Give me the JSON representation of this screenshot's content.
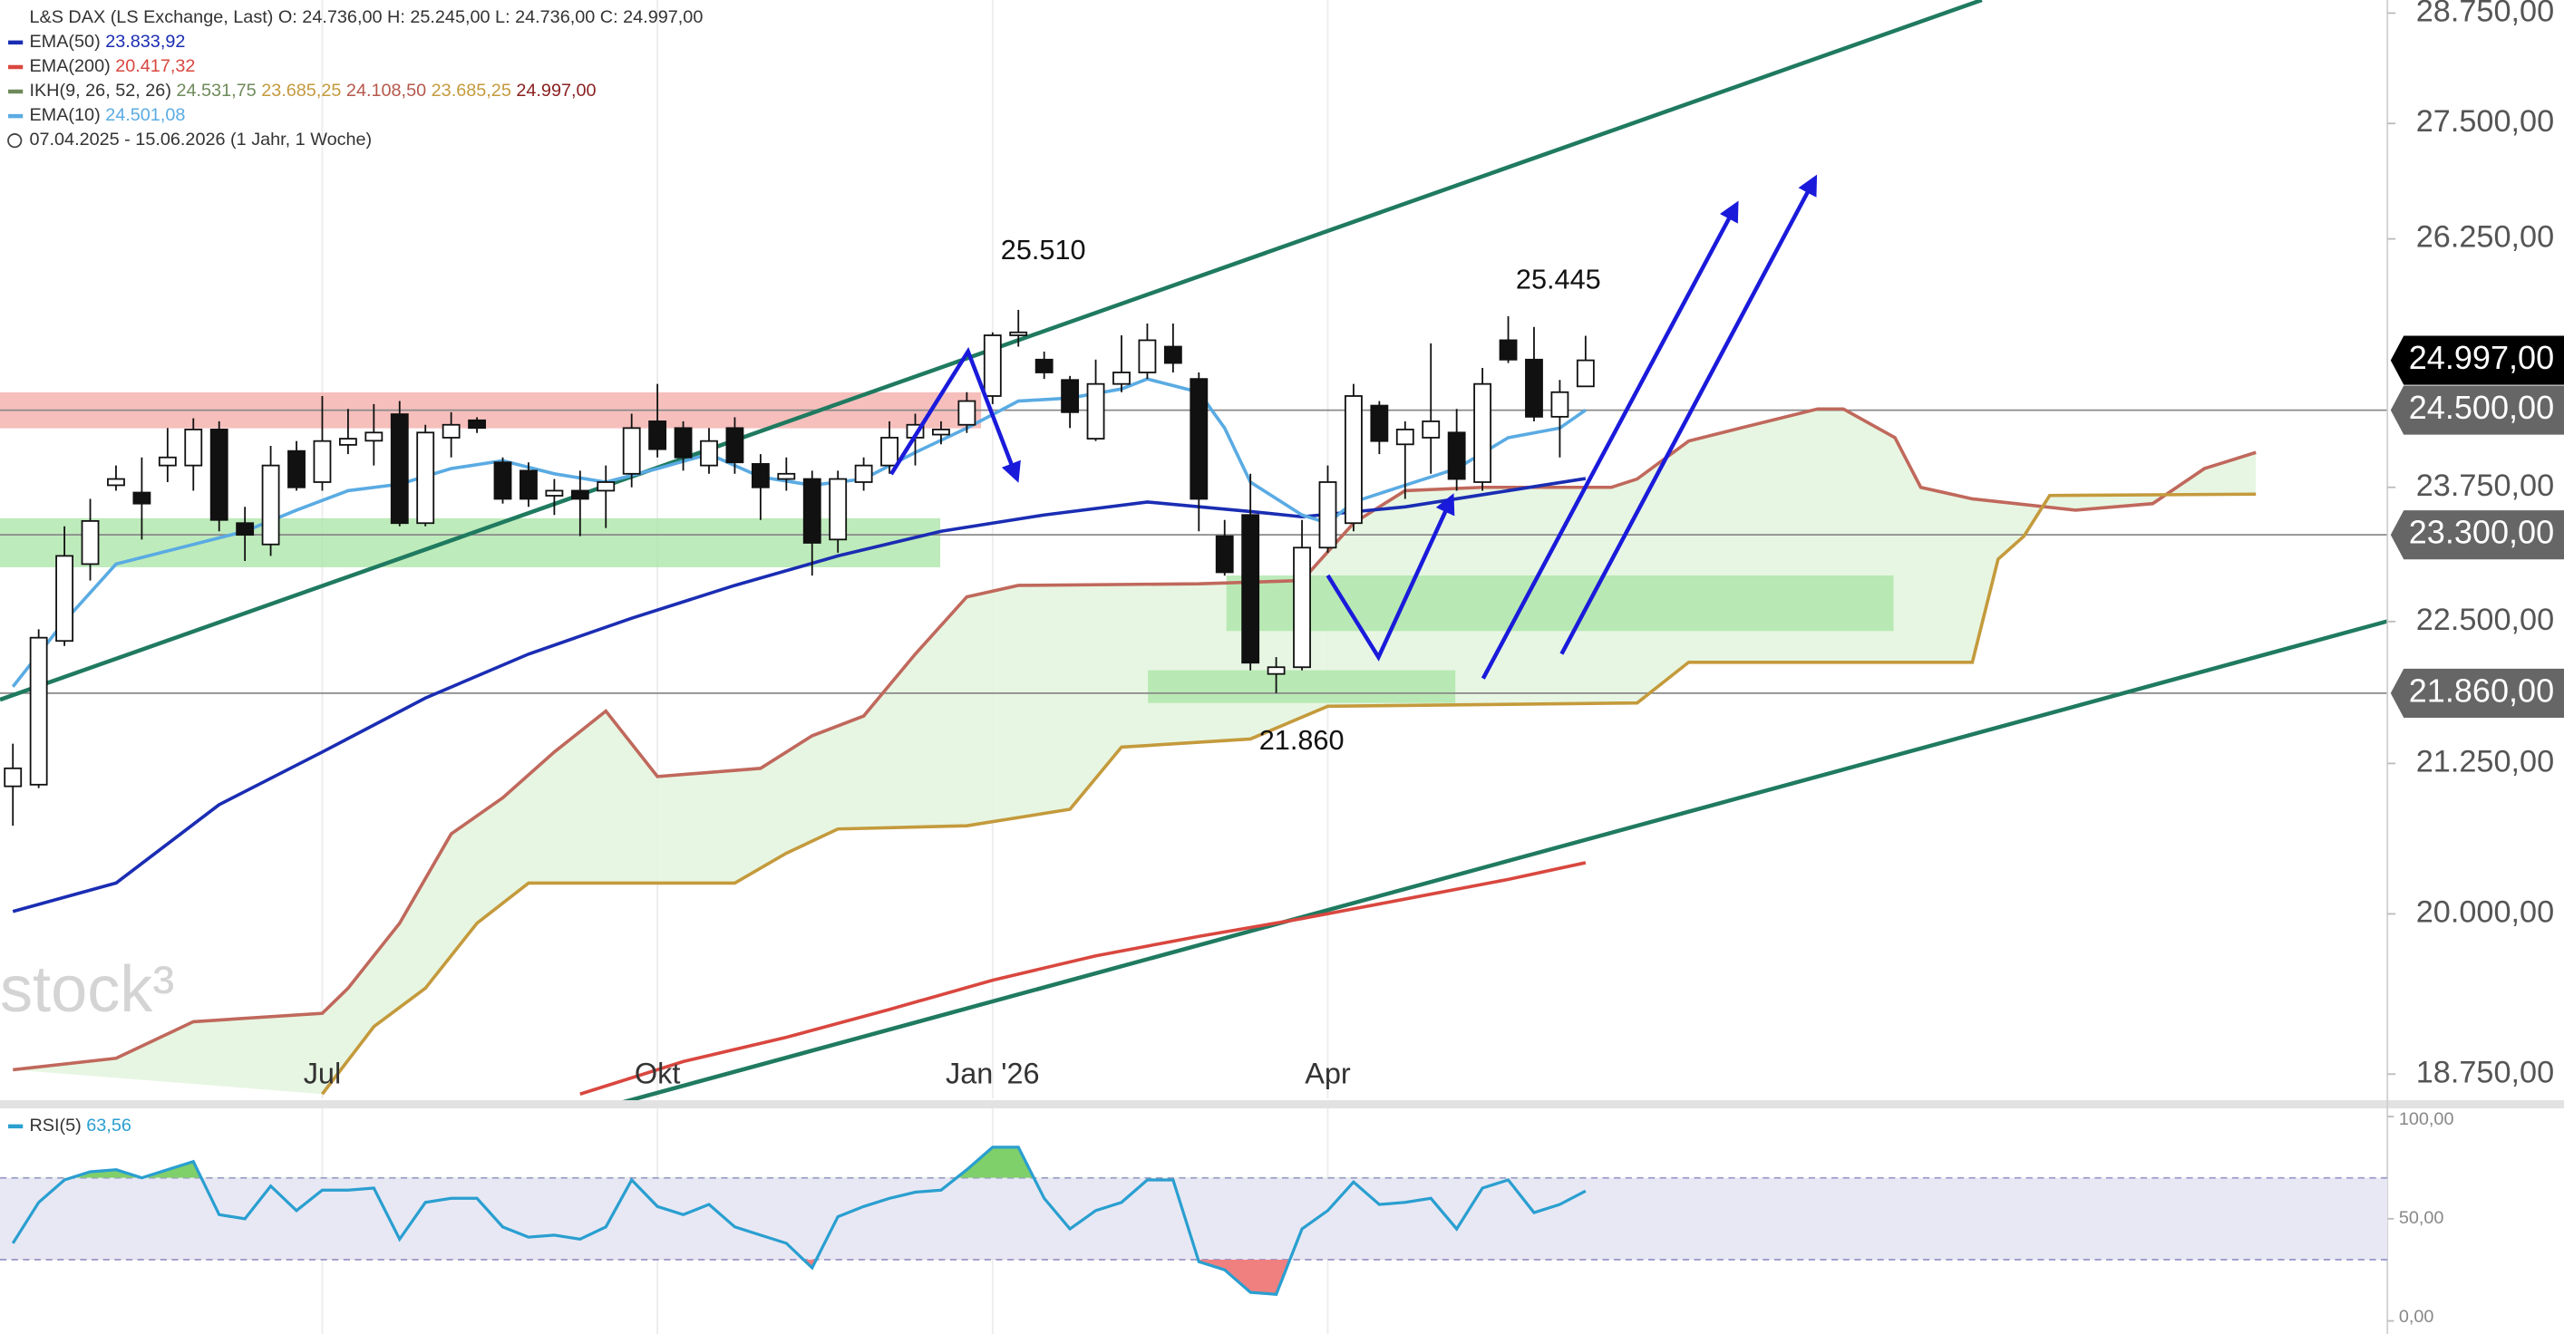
{
  "chart_data": [
    {
      "type": "candlestick",
      "title": "L&S DAX (LS Exchange, Last)",
      "ohlc": "O: 24.736,00  H: 25.245,00  L: 24.736,00  C: 24.997,00",
      "period": "07.04.2025 - 15.06.2026",
      "period_note": "(1 Jahr, 1 Woche)",
      "watermark": "stock³",
      "ylog": true,
      "grid": "x",
      "up_color": "#ffffff",
      "down_color": "#111111",
      "xlim": [
        -0.5,
        92.1
      ],
      "ylim": [
        18566,
        28902
      ],
      "xticks": [
        {
          "value": 12,
          "label": "Jul"
        },
        {
          "value": 25,
          "label": "Okt"
        },
        {
          "value": 38,
          "label": "Jan '26"
        },
        {
          "value": 51,
          "label": "Apr"
        }
      ],
      "yticks": [
        {
          "value": 28750,
          "label": "28.750,00"
        },
        {
          "value": 27500,
          "label": "27.500,00"
        },
        {
          "value": 26250,
          "label": "26.250,00"
        },
        {
          "value": 23750,
          "label": "23.750,00"
        },
        {
          "value": 22500,
          "label": "22.500,00"
        },
        {
          "value": 21250,
          "label": "21.250,00"
        },
        {
          "value": 20000,
          "label": "20.000,00"
        },
        {
          "value": 18750,
          "label": "18.750,00"
        }
      ],
      "price_markers": [
        {
          "value": 24997,
          "label": "24.997,00",
          "color": "#000000",
          "line": false
        },
        {
          "value": 24500,
          "label": "24.500,00",
          "color": "#666666",
          "line": true
        },
        {
          "value": 23300,
          "label": "23.300,00",
          "color": "#666666",
          "line": true
        },
        {
          "value": 21860,
          "label": "21.860,00",
          "color": "#666666",
          "line": true
        }
      ],
      "annotations": [
        "25.510",
        "25.445",
        "21.860"
      ],
      "open": [
        21055,
        21069,
        22325,
        23027,
        23770,
        23700,
        23960,
        23960,
        24310,
        23410,
        23210,
        24100,
        23800,
        24160,
        24200,
        24460,
        23410,
        24230,
        24400,
        23990,
        23910,
        23670,
        23718,
        23718,
        23880,
        24390,
        24324,
        23960,
        24324,
        23975,
        23830,
        23830,
        23256,
        23800,
        23960,
        24230,
        24260,
        24356,
        24640,
        25250,
        25004,
        24800,
        24220,
        24760,
        24875,
        25135,
        24810,
        23287,
        23487,
        22030,
        22090,
        23180,
        23410,
        24545,
        24165,
        24230,
        24280,
        23800,
        25200,
        25004,
        24435,
        24736
      ],
      "high": [
        21420,
        22430,
        23380,
        23640,
        23960,
        24038,
        24324,
        24420,
        24390,
        23564,
        24150,
        24197,
        24640,
        24512,
        24560,
        24590,
        24356,
        24480,
        24430,
        24038,
        23990,
        23830,
        23910,
        23960,
        24465,
        24760,
        24390,
        24324,
        24430,
        24070,
        24038,
        23910,
        23910,
        24038,
        24390,
        24465,
        24390,
        24678,
        25280,
        25510,
        25085,
        24840,
        25004,
        25250,
        25370,
        25370,
        24875,
        23440,
        23880,
        22180,
        23440,
        23960,
        24760,
        24590,
        24390,
        25168,
        24512,
        24920,
        25445,
        25335,
        24800,
        25245
      ],
      "low": [
        20723,
        21040,
        22280,
        22875,
        23718,
        23256,
        23800,
        23718,
        23333,
        23056,
        23103,
        23718,
        23718,
        24070,
        23960,
        23380,
        23380,
        24038,
        24276,
        23595,
        23564,
        23487,
        23287,
        23364,
        23750,
        24038,
        23910,
        23880,
        23880,
        23440,
        23718,
        22920,
        23133,
        23718,
        23880,
        23960,
        24165,
        24276,
        24560,
        25135,
        24810,
        24324,
        24197,
        24678,
        24810,
        24875,
        23333,
        22920,
        22061,
        21860,
        22061,
        23133,
        23333,
        24070,
        23640,
        23880,
        23718,
        23718,
        24970,
        24390,
        24038,
        24736
      ],
      "close": [
        21208,
        22354,
        23103,
        23430,
        23830,
        23595,
        24038,
        24310,
        23440,
        23300,
        23960,
        23750,
        24197,
        24220,
        24280,
        23410,
        24280,
        24356,
        24325,
        23640,
        23640,
        23718,
        23640,
        23800,
        24324,
        24118,
        24038,
        24197,
        23990,
        23750,
        23880,
        23225,
        23830,
        23960,
        24230,
        24356,
        24310,
        24590,
        25250,
        25280,
        24875,
        24480,
        24760,
        24875,
        25200,
        24970,
        23640,
        22951,
        22130,
        22090,
        23180,
        23800,
        24640,
        24197,
        24310,
        24390,
        23830,
        24760,
        25004,
        24435,
        24678,
        24997
      ],
      "series": [
        {
          "name": "EMA(50)",
          "legend_value": "23.833,92",
          "color": "#1a2db3",
          "x": [
            0,
            4,
            8,
            12,
            16,
            20,
            24,
            28,
            32,
            36,
            40,
            44,
            48,
            50,
            54,
            58,
            61
          ],
          "values": [
            20020,
            20250,
            20900,
            21348,
            21817,
            22207,
            22530,
            22830,
            23103,
            23333,
            23487,
            23610,
            23520,
            23470,
            23564,
            23718,
            23834
          ]
        },
        {
          "name": "EMA(200)",
          "legend_value": "20.417,32",
          "color": "#d9473f",
          "x": [
            22,
            26,
            30,
            34,
            38,
            42,
            46,
            50,
            54,
            58,
            61
          ],
          "values": [
            18600,
            18845,
            19030,
            19245,
            19473,
            19665,
            19820,
            19962,
            20120,
            20280,
            20417
          ]
        },
        {
          "name": "EMA(10)",
          "legend_value": "24.501,08",
          "color": "#5aabe3",
          "x": [
            0,
            2,
            4,
            7,
            9,
            11,
            13,
            15,
            17,
            19,
            21,
            23,
            25,
            27,
            29,
            31,
            33,
            35,
            37,
            39,
            41,
            43,
            44,
            46,
            47,
            48,
            50,
            51,
            52,
            54,
            56,
            58,
            60,
            61
          ],
          "values": [
            21917,
            22502,
            23027,
            23210,
            23333,
            23533,
            23718,
            23780,
            23930,
            24006,
            23880,
            23800,
            23930,
            24070,
            23850,
            23770,
            23830,
            24086,
            24324,
            24590,
            24620,
            24710,
            24810,
            24678,
            24324,
            23800,
            23487,
            23410,
            23610,
            23770,
            23930,
            24230,
            24324,
            24501
          ]
        }
      ],
      "ichimoku": {
        "name": "IKH(9, 26, 52, 26)",
        "color": "#6e8a5a",
        "cloud_color": "#e4f5df",
        "legend_values": [
          {
            "label": "24.531,75",
            "color": "#6e8a5a"
          },
          {
            "label": "23.685,25",
            "color": "#c49a3c"
          },
          {
            "label": "24.108,50",
            "color": "#b5574b"
          },
          {
            "label": "23.685,25",
            "color": "#c49a3c"
          },
          {
            "label": "24.997,00",
            "color": "#8a2020"
          }
        ],
        "lines": [
          {
            "color": "#c0685c",
            "x": [
              0,
              4,
              7,
              12,
              13,
              15,
              17,
              19,
              21,
              23,
              25,
              29,
              31,
              33,
              35,
              37,
              39,
              46,
              50,
              52,
              54,
              57,
              62,
              63,
              65,
              67,
              70,
              71,
              73,
              74,
              76,
              80,
              83,
              85,
              87
            ],
            "values": [
              18783,
              18870,
              19150,
              19215,
              19410,
              19925,
              20655,
              20958,
              21348,
              21703,
              21138,
              21208,
              21488,
              21660,
              22207,
              22725,
              22830,
              22845,
              22875,
              23410,
              23718,
              23750,
              23750,
              23830,
              24197,
              24324,
              24512,
              24512,
              24230,
              23750,
              23640,
              23533,
              23595,
              23930,
              24086
            ]
          },
          {
            "color": "#c49a3c",
            "x": [
              12,
              14,
              16,
              18,
              20,
              28,
              30,
              32,
              37,
              41,
              43,
              48,
              51,
              63,
              65,
              76,
              77,
              78,
              79,
              87
            ],
            "values": [
              18600,
              19112,
              19410,
              19925,
              20250,
              20250,
              20495,
              20696,
              20723,
              20861,
              21390,
              21460,
              21745,
              21774,
              22134,
              22134,
              23072,
              23287,
              23672,
              23685
            ]
          }
        ]
      }
    },
    {
      "type": "line",
      "name": "RSI(5)",
      "legend_value": "63,56",
      "color": "#2a9fd0",
      "band": [
        30,
        70
      ],
      "band_color": "#e8e8f4",
      "overbought_color": "#7fcf6a",
      "oversold_color": "#f08080",
      "ylim": [
        0,
        100
      ],
      "yticks": [
        {
          "value": 100,
          "label": "100,00"
        },
        {
          "value": 50,
          "label": "50,00"
        },
        {
          "value": 0,
          "label": "0,00"
        }
      ],
      "values": [
        38,
        58,
        69,
        73,
        74,
        70,
        74,
        78,
        52,
        50,
        66,
        54,
        64,
        64,
        65,
        40,
        58,
        60,
        60,
        46,
        41,
        42,
        40,
        46,
        69,
        56,
        52,
        57,
        46,
        42,
        38,
        26,
        51,
        56,
        60,
        63,
        64,
        74,
        85,
        85,
        60,
        45,
        54,
        58,
        69,
        69,
        29,
        25,
        14,
        13,
        45,
        54,
        68,
        57,
        58,
        60,
        45,
        65,
        69,
        53,
        57,
        63.56
      ]
    }
  ]
}
